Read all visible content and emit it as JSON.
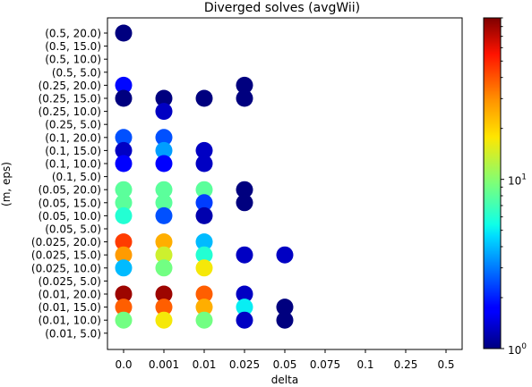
{
  "chart_data": {
    "type": "scatter",
    "title": "Diverged solves (avgWii)",
    "xlabel": "delta",
    "ylabel": "(m, eps)",
    "x_categories": [
      "0.0",
      "0.001",
      "0.01",
      "0.025",
      "0.05",
      "0.075",
      "0.1",
      "0.25",
      "0.5"
    ],
    "y_categories": [
      "(0.01, 5.0)",
      "(0.01, 10.0)",
      "(0.01, 15.0)",
      "(0.01, 20.0)",
      "(0.025, 5.0)",
      "(0.025, 10.0)",
      "(0.025, 15.0)",
      "(0.025, 20.0)",
      "(0.05, 5.0)",
      "(0.05, 10.0)",
      "(0.05, 15.0)",
      "(0.05, 20.0)",
      "(0.1, 5.0)",
      "(0.1, 10.0)",
      "(0.1, 15.0)",
      "(0.1, 20.0)",
      "(0.25, 5.0)",
      "(0.25, 10.0)",
      "(0.25, 15.0)",
      "(0.25, 20.0)",
      "(0.5, 5.0)",
      "(0.5, 10.0)",
      "(0.5, 15.0)",
      "(0.5, 20.0)"
    ],
    "points": [
      {
        "x": "0.0",
        "y": "(0.5, 20.0)",
        "value": 1.0
      },
      {
        "x": "0.0",
        "y": "(0.25, 20.0)",
        "value": 1.8
      },
      {
        "x": "0.025",
        "y": "(0.25, 20.0)",
        "value": 1.0
      },
      {
        "x": "0.0",
        "y": "(0.25, 15.0)",
        "value": 1.0
      },
      {
        "x": "0.001",
        "y": "(0.25, 15.0)",
        "value": 1.0
      },
      {
        "x": "0.01",
        "y": "(0.25, 15.0)",
        "value": 1.0
      },
      {
        "x": "0.025",
        "y": "(0.25, 15.0)",
        "value": 1.0
      },
      {
        "x": "0.001",
        "y": "(0.25, 10.0)",
        "value": 1.3
      },
      {
        "x": "0.0",
        "y": "(0.1, 20.0)",
        "value": 2.5
      },
      {
        "x": "0.001",
        "y": "(0.1, 20.0)",
        "value": 2.5
      },
      {
        "x": "0.0",
        "y": "(0.1, 15.0)",
        "value": 1.3
      },
      {
        "x": "0.001",
        "y": "(0.1, 15.0)",
        "value": 3.5
      },
      {
        "x": "0.01",
        "y": "(0.1, 15.0)",
        "value": 1.3
      },
      {
        "x": "0.0",
        "y": "(0.1, 10.0)",
        "value": 1.7
      },
      {
        "x": "0.001",
        "y": "(0.1, 10.0)",
        "value": 1.7
      },
      {
        "x": "0.01",
        "y": "(0.1, 10.0)",
        "value": 1.3
      },
      {
        "x": "0.0",
        "y": "(0.05, 20.0)",
        "value": 8.0
      },
      {
        "x": "0.001",
        "y": "(0.05, 20.0)",
        "value": 8.0
      },
      {
        "x": "0.01",
        "y": "(0.05, 20.0)",
        "value": 8.0
      },
      {
        "x": "0.025",
        "y": "(0.05, 20.0)",
        "value": 1.0
      },
      {
        "x": "0.0",
        "y": "(0.05, 15.0)",
        "value": 8.0
      },
      {
        "x": "0.001",
        "y": "(0.05, 15.0)",
        "value": 8.0
      },
      {
        "x": "0.01",
        "y": "(0.05, 15.0)",
        "value": 2.3
      },
      {
        "x": "0.025",
        "y": "(0.05, 15.0)",
        "value": 1.0
      },
      {
        "x": "0.0",
        "y": "(0.05, 10.0)",
        "value": 6.0
      },
      {
        "x": "0.001",
        "y": "(0.05, 10.0)",
        "value": 2.5
      },
      {
        "x": "0.01",
        "y": "(0.05, 10.0)",
        "value": 1.2
      },
      {
        "x": "0.0",
        "y": "(0.025, 20.0)",
        "value": 45
      },
      {
        "x": "0.001",
        "y": "(0.025, 20.0)",
        "value": 25
      },
      {
        "x": "0.01",
        "y": "(0.025, 20.0)",
        "value": 4.0
      },
      {
        "x": "0.0",
        "y": "(0.025, 15.0)",
        "value": 28
      },
      {
        "x": "0.001",
        "y": "(0.025, 15.0)",
        "value": 14
      },
      {
        "x": "0.01",
        "y": "(0.025, 15.0)",
        "value": 6.0
      },
      {
        "x": "0.025",
        "y": "(0.025, 15.0)",
        "value": 1.3
      },
      {
        "x": "0.05",
        "y": "(0.025, 15.0)",
        "value": 1.3
      },
      {
        "x": "0.0",
        "y": "(0.025, 10.0)",
        "value": 4.0
      },
      {
        "x": "0.001",
        "y": "(0.025, 10.0)",
        "value": 9.0
      },
      {
        "x": "0.01",
        "y": "(0.025, 10.0)",
        "value": 17
      },
      {
        "x": "0.0",
        "y": "(0.01, 20.0)",
        "value": 80
      },
      {
        "x": "0.001",
        "y": "(0.01, 20.0)",
        "value": 80
      },
      {
        "x": "0.01",
        "y": "(0.01, 20.0)",
        "value": 38
      },
      {
        "x": "0.025",
        "y": "(0.01, 20.0)",
        "value": 1.3
      },
      {
        "x": "0.0",
        "y": "(0.01, 15.0)",
        "value": 38
      },
      {
        "x": "0.001",
        "y": "(0.01, 15.0)",
        "value": 38
      },
      {
        "x": "0.01",
        "y": "(0.01, 15.0)",
        "value": 25
      },
      {
        "x": "0.025",
        "y": "(0.01, 15.0)",
        "value": 5.0
      },
      {
        "x": "0.05",
        "y": "(0.01, 15.0)",
        "value": 1.0
      },
      {
        "x": "0.0",
        "y": "(0.01, 10.0)",
        "value": 9.0
      },
      {
        "x": "0.001",
        "y": "(0.01, 10.0)",
        "value": 17
      },
      {
        "x": "0.01",
        "y": "(0.01, 10.0)",
        "value": 9.0
      },
      {
        "x": "0.025",
        "y": "(0.01, 10.0)",
        "value": 1.3
      },
      {
        "x": "0.05",
        "y": "(0.01, 10.0)",
        "value": 1.0
      }
    ],
    "colorbar": {
      "scale": "log",
      "colormap": "jet",
      "min": 1,
      "max": 90,
      "tick_labels": [
        {
          "value": 1,
          "label": "10",
          "exponent": "0"
        },
        {
          "value": 10,
          "label": "10",
          "exponent": "1"
        }
      ]
    },
    "grid": false,
    "legend": "none"
  }
}
